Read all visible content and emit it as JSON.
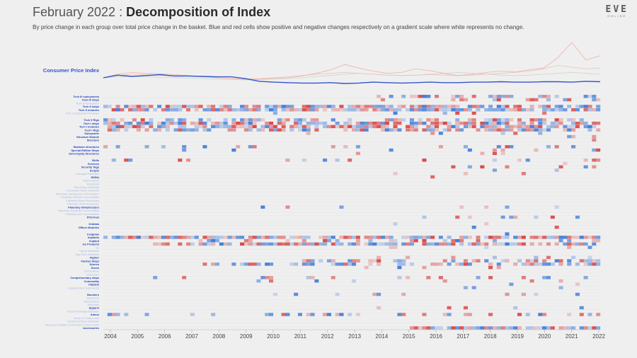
{
  "header": {
    "title_prefix": "February 2022",
    "title_sep": " : ",
    "title_bold": "Decomposition of Index",
    "subtitle": "By price change in each group over total price change in the basket. Blue and red cells show positive and negative changes respectively on a gradient scale where white represents no change."
  },
  "logo": {
    "text": "EVE",
    "subtext": "ONLINE"
  },
  "colors": {
    "background": "#efefef",
    "cpi_line": "#3355cc",
    "positive": "#3a78d8",
    "negative": "#d84040",
    "label_active": "#2443b8",
    "label_faded": "#aab8e0"
  },
  "chart_data": {
    "type": "heatmap",
    "title": "Decomposition of Index",
    "x_ticks": [
      "2004",
      "2005",
      "2006",
      "2007",
      "2008",
      "2009",
      "2010",
      "2011",
      "2012",
      "2013",
      "2014",
      "2015",
      "2016",
      "2017",
      "2018",
      "2019",
      "2020",
      "2021",
      "2022"
    ],
    "line_series": [
      {
        "name": "Consumer Price Index",
        "values": [
          1.0,
          1.06,
          1.03,
          1.05,
          1.07,
          1.04,
          1.04,
          1.03,
          1.02,
          1.02,
          0.98,
          0.92,
          0.9,
          0.89,
          0.88,
          0.88,
          0.89,
          0.87,
          0.88,
          0.9,
          0.89,
          0.88,
          0.89,
          0.9,
          0.89,
          0.89,
          0.9,
          0.9,
          0.91,
          0.9,
          0.9,
          0.91,
          0.91,
          0.9,
          0.92,
          0.91
        ]
      },
      {
        "name": "",
        "values": [
          1.0,
          1.08,
          1.12,
          1.1,
          1.09,
          1.07,
          1.05,
          1.02,
          1.0,
          0.98,
          0.96,
          0.97,
          0.99,
          1.0,
          1.04,
          1.1,
          1.18,
          1.3,
          1.22,
          1.15,
          1.1,
          1.12,
          1.2,
          1.16,
          1.1,
          1.05,
          1.08,
          1.12,
          1.15,
          1.13,
          1.18,
          1.22,
          1.45,
          1.8,
          1.4,
          1.5
        ]
      },
      {
        "name": "",
        "values": [
          1.0,
          1.05,
          1.08,
          1.07,
          1.06,
          1.05,
          1.04,
          1.03,
          1.0,
          0.98,
          0.97,
          0.98,
          1.0,
          1.02,
          1.05,
          1.08,
          1.1,
          1.12,
          1.1,
          1.08,
          1.06,
          1.05,
          1.06,
          1.07,
          1.06,
          1.05,
          1.06,
          1.08,
          1.1,
          1.12,
          1.15,
          1.2,
          1.28,
          1.24,
          1.2,
          1.22
        ]
      },
      {
        "name": "",
        "values": [
          1.0,
          1.02,
          1.03,
          1.02,
          1.01,
          1.0,
          0.99,
          0.98,
          0.97,
          0.96,
          0.95,
          0.96,
          0.97,
          0.98,
          1.0,
          1.03,
          1.05,
          1.08,
          1.1,
          1.08,
          1.06,
          1.05,
          1.06,
          1.08,
          1.1,
          1.12,
          1.1,
          1.08,
          1.06,
          1.05,
          1.06,
          1.08,
          1.1,
          1.12,
          1.1,
          1.08
        ]
      }
    ],
    "cpi_label": "Consumer Price Index",
    "rows": [
      {
        "label": "Tech III subsystems",
        "active": true,
        "seed": 1,
        "density": 0.55,
        "start": 0.55
      },
      {
        "label": "Tech III ships",
        "active": true,
        "seed": 2,
        "density": 0.35,
        "start": 0.55
      },
      {
        "label": "Tech III Subsystem",
        "active": false,
        "seed": 3,
        "density": 0.0,
        "start": 0
      },
      {
        "label": "Tech II ships",
        "active": true,
        "seed": 4,
        "density": 0.95,
        "start": 0
      },
      {
        "label": "Tech II modules",
        "active": true,
        "seed": 5,
        "density": 0.95,
        "start": 0
      },
      {
        "label": "Tech II Subsystem Modules",
        "active": false,
        "seed": 6,
        "density": 0.05,
        "start": 0.3
      },
      {
        "label": "",
        "active": false,
        "seed": 7,
        "density": 0,
        "start": 0
      },
      {
        "label": "Tech II Rigs",
        "active": true,
        "seed": 8,
        "density": 0.6,
        "start": 0
      },
      {
        "label": "Tech I ships",
        "active": true,
        "seed": 9,
        "density": 0.95,
        "start": 0
      },
      {
        "label": "Tech I modules",
        "active": true,
        "seed": 10,
        "density": 0.95,
        "start": 0
      },
      {
        "label": "Tech I Rigs",
        "active": true,
        "seed": 11,
        "density": 0.7,
        "start": 0
      },
      {
        "label": "Subsystem",
        "active": true,
        "seed": 12,
        "density": 0.1,
        "start": 0.4
      },
      {
        "label": "Structure Module",
        "active": true,
        "seed": 13,
        "density": 0.05,
        "start": 0.6
      },
      {
        "label": "Structure",
        "active": true,
        "seed": 14,
        "density": 0.05,
        "start": 0.6
      },
      {
        "label": "",
        "active": false,
        "seed": 15,
        "density": 0,
        "start": 0
      },
      {
        "label": "Starbase structures",
        "active": true,
        "seed": 16,
        "density": 0.15,
        "start": 0
      },
      {
        "label": "Special Edition Ships",
        "active": true,
        "seed": 17,
        "density": 0.05,
        "start": 0
      },
      {
        "label": "Sovereignty Structures",
        "active": true,
        "seed": 18,
        "density": 0.05,
        "start": 0
      },
      {
        "label": "",
        "active": false,
        "seed": 19,
        "density": 0,
        "start": 0
      },
      {
        "label": "Skills",
        "active": true,
        "seed": 20,
        "density": 0.2,
        "start": 0
      },
      {
        "label": "Services",
        "active": true,
        "seed": 21,
        "density": 0.05,
        "start": 0.7
      },
      {
        "label": "Security Tags",
        "active": true,
        "seed": 22,
        "density": 0.1,
        "start": 0.7
      },
      {
        "label": "Scripts",
        "active": true,
        "seed": 23,
        "density": 0.05,
        "start": 0.7
      },
      {
        "label": "Salvaged Materials",
        "active": false,
        "seed": 24,
        "density": 0.05,
        "start": 0.5
      },
      {
        "label": "SKINs",
        "active": true,
        "seed": 25,
        "density": 0.05,
        "start": 0.6
      },
      {
        "label": "Reprocessed",
        "active": false,
        "seed": 26,
        "density": 0,
        "start": 0
      },
      {
        "label": "Reactions",
        "active": false,
        "seed": 27,
        "density": 0,
        "start": 0
      },
      {
        "label": "Raw Moon Materials",
        "active": false,
        "seed": 28,
        "density": 0,
        "start": 0
      },
      {
        "label": "Processed Moon Materials",
        "active": false,
        "seed": 29,
        "density": 0,
        "start": 0
      },
      {
        "label": "Planetary Specialized Commodities",
        "active": false,
        "seed": 30,
        "density": 0,
        "start": 0
      },
      {
        "label": "Planetary Refined Commodities",
        "active": false,
        "seed": 31,
        "density": 0,
        "start": 0
      },
      {
        "label": "Planetary Basic Resources",
        "active": false,
        "seed": 32,
        "density": 0,
        "start": 0
      },
      {
        "label": "Planetary Raw Resources",
        "active": false,
        "seed": 33,
        "density": 0,
        "start": 0
      },
      {
        "label": "Planetary Infrastructure",
        "active": true,
        "seed": 34,
        "density": 0.05,
        "start": 0.3
      },
      {
        "label": "Planetary Advanced Commodities",
        "active": false,
        "seed": 35,
        "density": 0,
        "start": 0
      },
      {
        "label": "Planetary Adv Commodities",
        "active": false,
        "seed": 36,
        "density": 0,
        "start": 0
      },
      {
        "label": "POS Fuel",
        "active": true,
        "seed": 37,
        "density": 0.2,
        "start": 0.45
      },
      {
        "label": "",
        "active": false,
        "seed": 38,
        "density": 0,
        "start": 0
      },
      {
        "label": "Orbitals",
        "active": true,
        "seed": 39,
        "density": 0.05,
        "start": 0.5
      },
      {
        "label": "Officer Modules",
        "active": true,
        "seed": 40,
        "density": 0.05,
        "start": 0.5
      },
      {
        "label": "",
        "active": false,
        "seed": 41,
        "density": 0,
        "start": 0
      },
      {
        "label": "Insignias",
        "active": true,
        "seed": 42,
        "density": 0.05,
        "start": 0.5
      },
      {
        "label": "Implants",
        "active": true,
        "seed": 43,
        "density": 0.95,
        "start": 0
      },
      {
        "label": "Implant",
        "active": true,
        "seed": 44,
        "density": 0.3,
        "start": 0.1
      },
      {
        "label": "Ice Products",
        "active": true,
        "seed": 45,
        "density": 0.95,
        "start": 0.1
      },
      {
        "label": "Ice",
        "active": false,
        "seed": 46,
        "density": 0.05,
        "start": 0.5
      },
      {
        "label": "Hybrid Materials",
        "active": false,
        "seed": 47,
        "density": 0,
        "start": 0
      },
      {
        "label": "High Tech Materials",
        "active": false,
        "seed": 48,
        "density": 0,
        "start": 0
      },
      {
        "label": "Fighter",
        "active": true,
        "seed": 49,
        "density": 0.1,
        "start": 0.5
      },
      {
        "label": "Faction Ships",
        "active": true,
        "seed": 50,
        "density": 0.6,
        "start": 0.4
      },
      {
        "label": "Drones",
        "active": true,
        "seed": 51,
        "density": 0.6,
        "start": 0.2
      },
      {
        "label": "Drone",
        "active": true,
        "seed": 52,
        "density": 0.1,
        "start": 0.5
      },
      {
        "label": "Decorations",
        "active": false,
        "seed": 53,
        "density": 0,
        "start": 0
      },
      {
        "label": "Datacores",
        "active": false,
        "seed": 54,
        "density": 0,
        "start": 0
      },
      {
        "label": "Complementary ships",
        "active": true,
        "seed": 55,
        "density": 0.15,
        "start": 0
      },
      {
        "label": "Commodity",
        "active": true,
        "seed": 56,
        "density": 0.1,
        "start": 0.3
      },
      {
        "label": "Citadels",
        "active": true,
        "seed": 57,
        "density": 0.05,
        "start": 0.6
      },
      {
        "label": "Capital Ship Components",
        "active": false,
        "seed": 58,
        "density": 0.05,
        "start": 0.5
      },
      {
        "label": "",
        "active": false,
        "seed": 59,
        "density": 0,
        "start": 0
      },
      {
        "label": "Boosters",
        "active": true,
        "seed": 60,
        "density": 0.15,
        "start": 0.3
      },
      {
        "label": "Blueprints",
        "active": false,
        "seed": 61,
        "density": 0,
        "start": 0
      },
      {
        "label": "Biochemical",
        "active": false,
        "seed": 62,
        "density": 0,
        "start": 0
      },
      {
        "label": "Asteroids",
        "active": false,
        "seed": 63,
        "density": 0,
        "start": 0
      },
      {
        "label": "Apparel",
        "active": true,
        "seed": 64,
        "density": 0.1,
        "start": 0.5
      },
      {
        "label": "Ancient Salvage Materials",
        "active": false,
        "seed": 65,
        "density": 0,
        "start": 0
      },
      {
        "label": "Ammo",
        "active": true,
        "seed": 66,
        "density": 0.4,
        "start": 0
      },
      {
        "label": "Alloys & Compounds",
        "active": false,
        "seed": 67,
        "density": 0,
        "start": 0
      },
      {
        "label": "Advanced Moon Materials",
        "active": false,
        "seed": 68,
        "density": 0,
        "start": 0
      },
      {
        "label": "Advanced Capital Construction Components",
        "active": false,
        "seed": 69,
        "density": 0,
        "start": 0
      },
      {
        "label": "Accessories",
        "active": true,
        "seed": 70,
        "density": 0.95,
        "start": 0.62
      }
    ]
  }
}
